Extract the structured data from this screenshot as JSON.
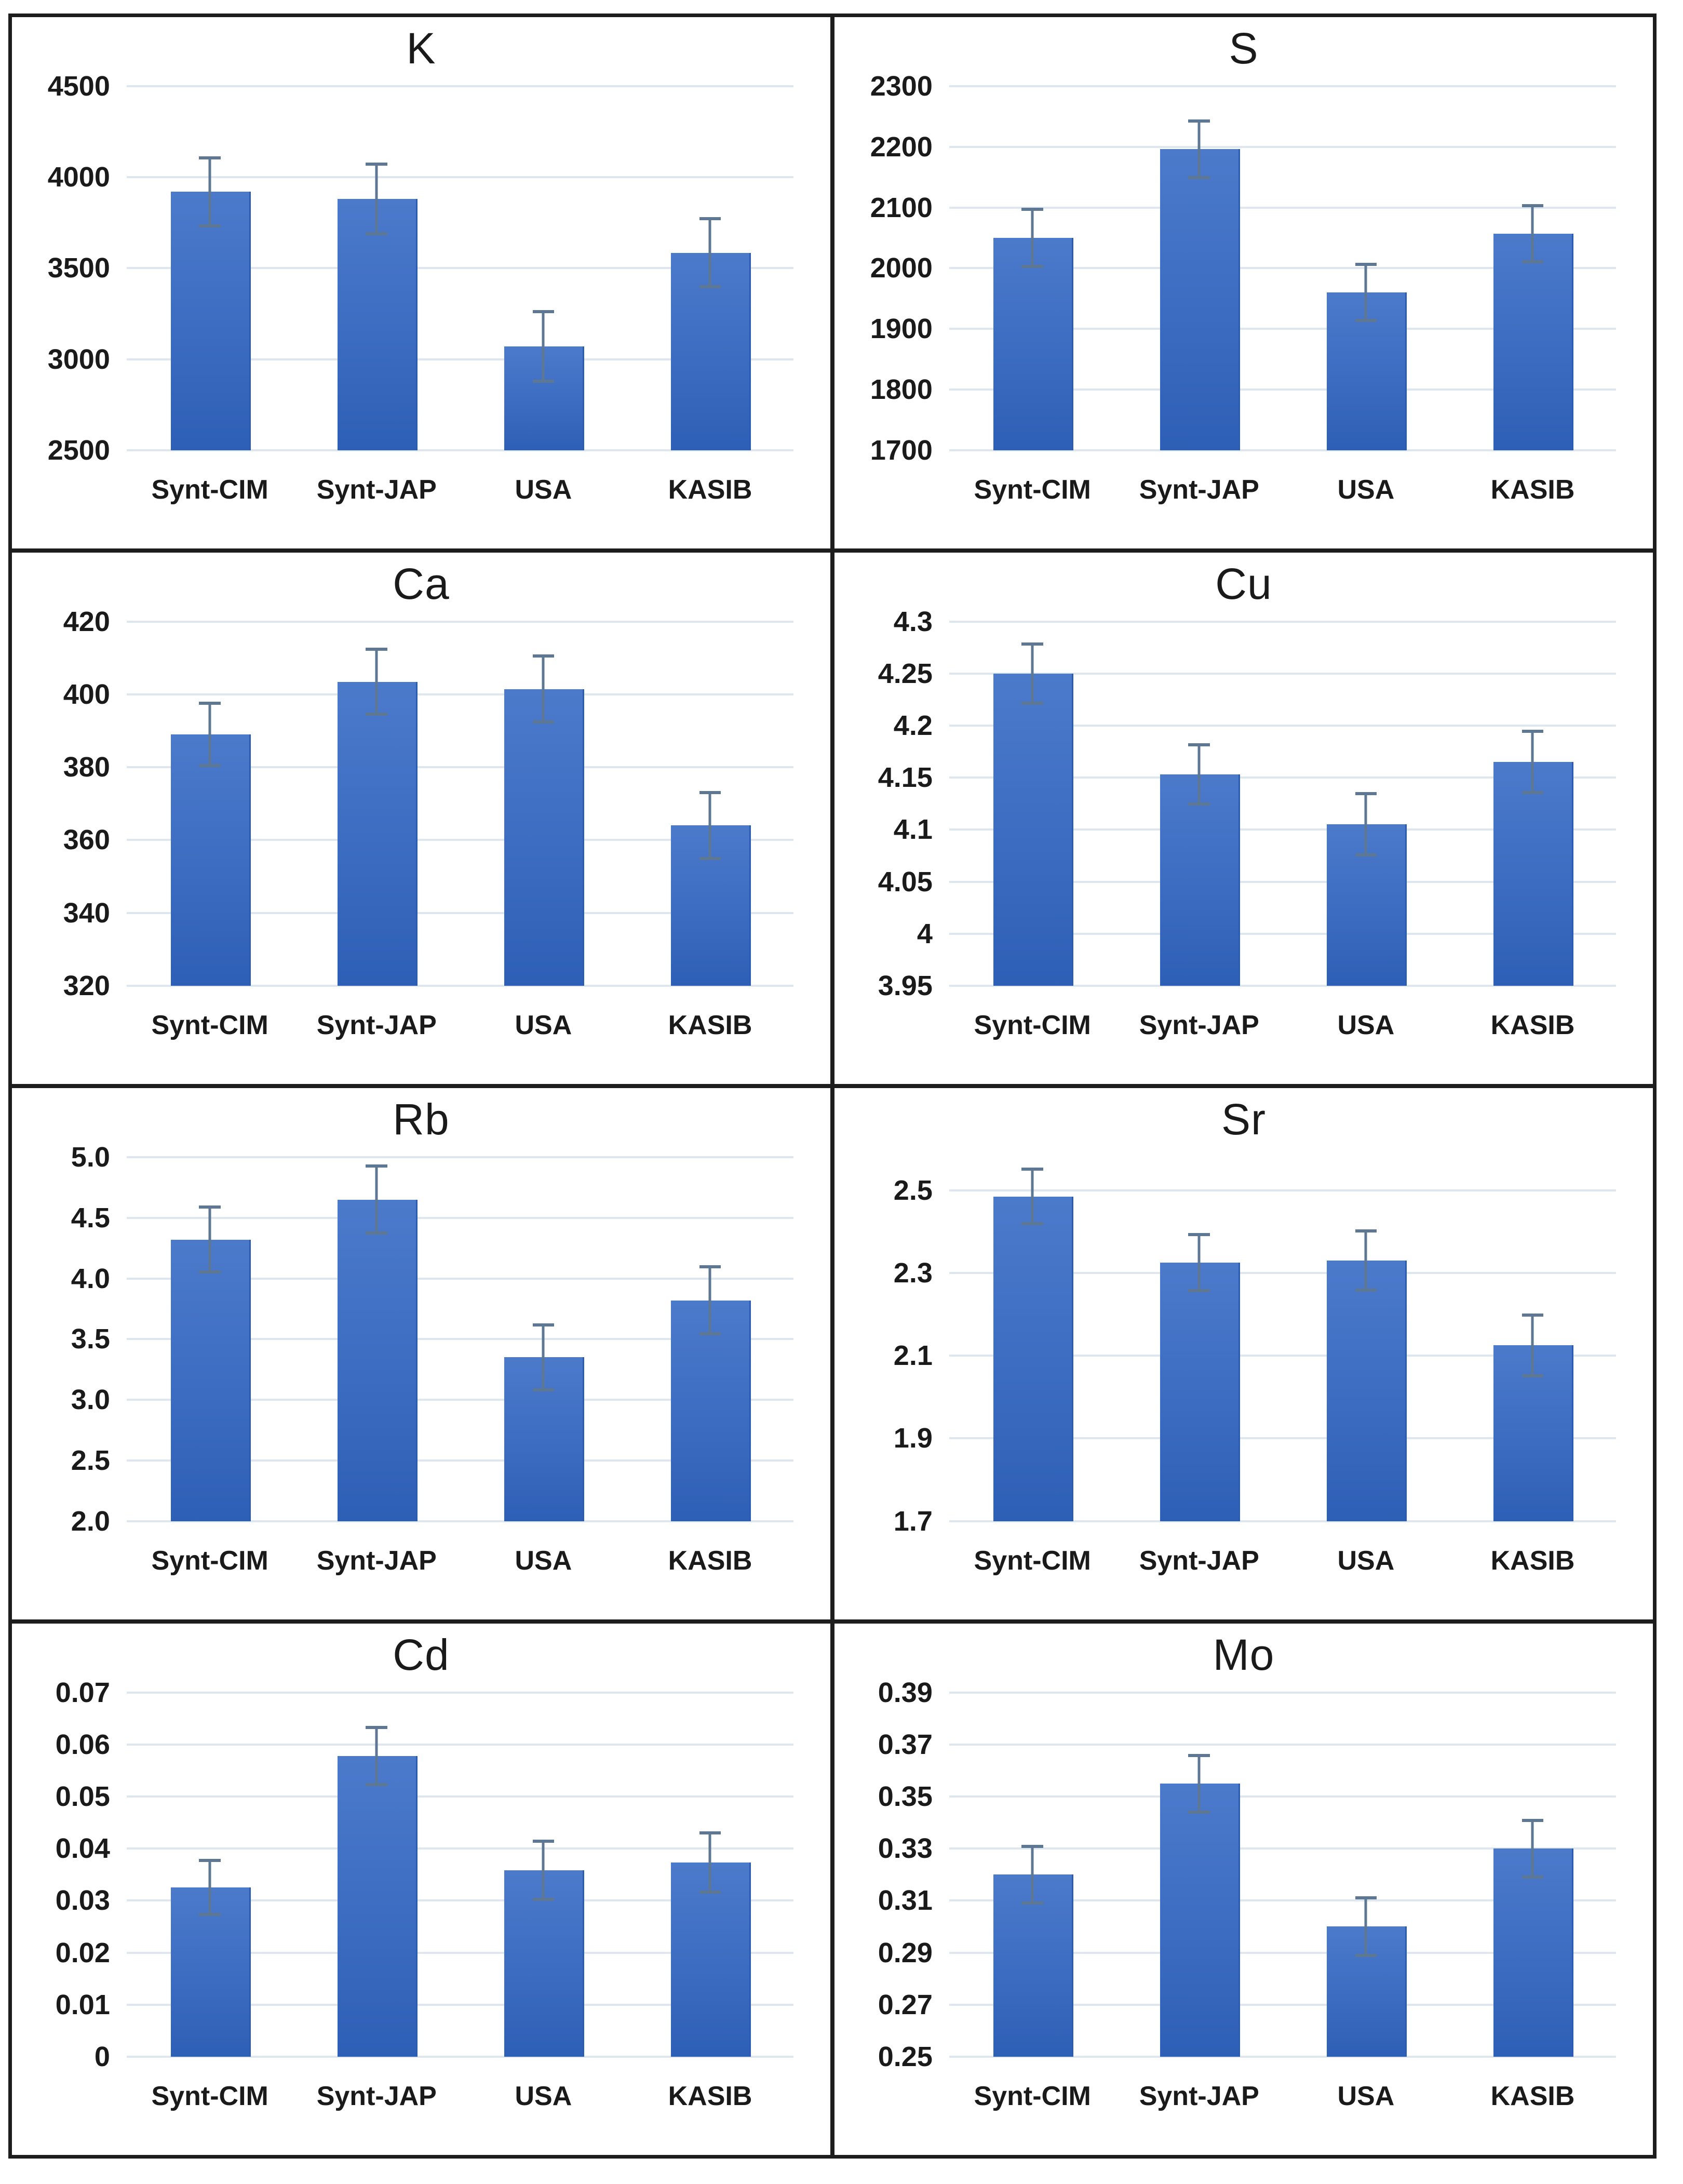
{
  "figure": {
    "description_visible_text_only": true,
    "layout": {
      "rows": 4,
      "cols": 2,
      "panel_border_color": "#1d1d1d",
      "background": "#ffffff"
    },
    "style": {
      "bar_color_top": "#4c7acb",
      "bar_color_bottom": "#2e5fb6",
      "error_bar_color": "#5e7893",
      "gridline_color": "#dee6f0",
      "text_color": "#1a1a1a"
    }
  },
  "chart_data": [
    {
      "type": "bar",
      "title": "K",
      "categories": [
        "Synt-CIM",
        "Synt-JAP",
        "USA",
        "KASIB"
      ],
      "values": [
        3920,
        3880,
        3070,
        3585
      ],
      "errors": [
        195,
        200,
        200,
        195
      ],
      "ylim": [
        2500,
        4500
      ],
      "ytick_values": [
        4500,
        4000,
        3500,
        3000,
        2500
      ],
      "ytick_labels": [
        "4500",
        "4000",
        "3500",
        "3000",
        "2500"
      ],
      "xlabel": "",
      "ylabel": "",
      "grid": true,
      "legend": "none"
    },
    {
      "type": "bar",
      "title": "S",
      "categories": [
        "Synt-CIM",
        "Synt-JAP",
        "USA",
        "KASIB"
      ],
      "values": [
        2050,
        2196,
        1960,
        2057
      ],
      "errors": [
        50,
        49,
        49,
        49
      ],
      "ylim": [
        1700,
        2300
      ],
      "ytick_values": [
        2300,
        2200,
        2100,
        2000,
        1900,
        1800,
        1700
      ],
      "ytick_labels": [
        "2300",
        "2200",
        "2100",
        "2000",
        "1900",
        "1800",
        "1700"
      ],
      "xlabel": "",
      "ylabel": "",
      "grid": true,
      "legend": "none"
    },
    {
      "type": "bar",
      "title": "Ca",
      "categories": [
        "Synt-CIM",
        "Synt-JAP",
        "USA",
        "KASIB"
      ],
      "values": [
        389,
        403.5,
        401.5,
        364
      ],
      "errors": [
        9,
        9.3,
        9.5,
        9.5
      ],
      "ylim": [
        320,
        420
      ],
      "ytick_values": [
        420,
        400,
        380,
        360,
        340,
        320
      ],
      "ytick_labels": [
        "420",
        "400",
        "380",
        "360",
        "340",
        "320"
      ],
      "xlabel": "",
      "ylabel": "",
      "grid": true,
      "legend": "none"
    },
    {
      "type": "bar",
      "title": "Cu",
      "categories": [
        "Synt-CIM",
        "Synt-JAP",
        "USA",
        "KASIB"
      ],
      "values": [
        4.25,
        4.153,
        4.105,
        4.165
      ],
      "errors": [
        0.03,
        0.03,
        0.031,
        0.031
      ],
      "ylim": [
        3.95,
        4.3
      ],
      "ytick_values": [
        4.3,
        4.25,
        4.2,
        4.15,
        4.1,
        4.05,
        4,
        3.95
      ],
      "ytick_labels": [
        "4.3",
        "4.25",
        "4.2",
        "4.15",
        "4.1",
        "4.05",
        "4",
        "3.95"
      ],
      "xlabel": "",
      "ylabel": "",
      "grid": true,
      "legend": "none"
    },
    {
      "type": "bar",
      "title": "Rb",
      "categories": [
        "Synt-CIM",
        "Synt-JAP",
        "USA",
        "KASIB"
      ],
      "values": [
        4.32,
        4.65,
        3.35,
        3.82
      ],
      "errors": [
        0.28,
        0.29,
        0.28,
        0.29
      ],
      "ylim": [
        2.0,
        5.0
      ],
      "ytick_values": [
        5.0,
        4.5,
        4.0,
        3.5,
        3.0,
        2.5,
        2.0
      ],
      "ytick_labels": [
        "5.0",
        "4.5",
        "4.0",
        "3.5",
        "3.0",
        "2.5",
        "2.0"
      ],
      "xlabel": "",
      "ylabel": "",
      "grid": true,
      "legend": "none"
    },
    {
      "type": "bar",
      "title": "Sr",
      "categories": [
        "Synt-CIM",
        "Synt-JAP",
        "USA",
        "KASIB"
      ],
      "values": [
        2.485,
        2.325,
        2.33,
        2.125
      ],
      "errors": [
        0.07,
        0.072,
        0.075,
        0.077
      ],
      "ylim": [
        1.7,
        2.58
      ],
      "ytick_values": [
        2.5,
        2.3,
        2.1,
        1.9,
        1.7
      ],
      "ytick_labels": [
        "2.5",
        "2.3",
        "2.1",
        "1.9",
        "1.7"
      ],
      "xlabel": "",
      "ylabel": "",
      "grid": true,
      "legend": "none"
    },
    {
      "type": "bar",
      "title": "Cd",
      "categories": [
        "Synt-CIM",
        "Synt-JAP",
        "USA",
        "KASIB"
      ],
      "values": [
        0.0325,
        0.0578,
        0.0358,
        0.0373
      ],
      "errors": [
        0.0055,
        0.0058,
        0.0059,
        0.006
      ],
      "ylim": [
        0,
        0.07
      ],
      "ytick_values": [
        0.07,
        0.06,
        0.05,
        0.04,
        0.03,
        0.02,
        0.01,
        0
      ],
      "ytick_labels": [
        "0.07",
        "0.06",
        "0.05",
        "0.04",
        "0.03",
        "0.02",
        "0.01",
        "0"
      ],
      "xlabel": "",
      "ylabel": "",
      "grid": true,
      "legend": "none"
    },
    {
      "type": "bar",
      "title": "Mo",
      "categories": [
        "Synt-CIM",
        "Synt-JAP",
        "USA",
        "KASIB"
      ],
      "values": [
        0.32,
        0.355,
        0.3,
        0.33
      ],
      "errors": [
        0.0115,
        0.0115,
        0.0117,
        0.0115
      ],
      "ylim": [
        0.25,
        0.39
      ],
      "ytick_values": [
        0.39,
        0.37,
        0.35,
        0.33,
        0.31,
        0.29,
        0.27,
        0.25
      ],
      "ytick_labels": [
        "0.39",
        "0.37",
        "0.35",
        "0.33",
        "0.31",
        "0.29",
        "0.27",
        "0.25"
      ],
      "xlabel": "",
      "ylabel": "",
      "grid": true,
      "legend": "none"
    }
  ]
}
